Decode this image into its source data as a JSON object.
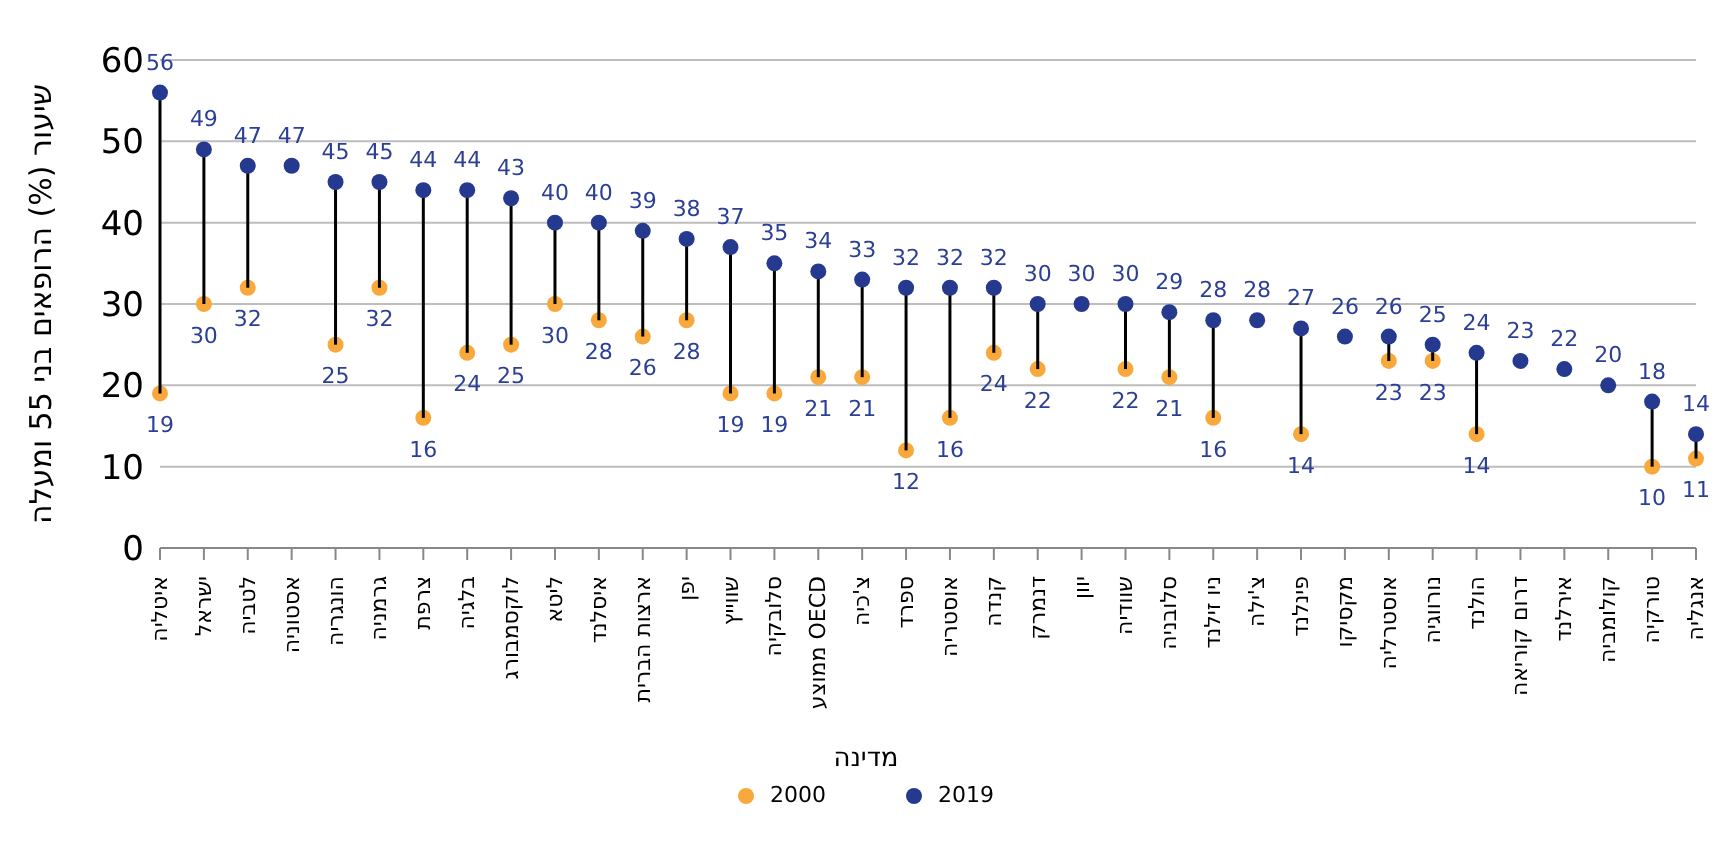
{
  "chart_data": {
    "type": "scatter",
    "xlabel": "מדינה",
    "ylabel": "שיעור (%) הרופאים בני 55 ומעלה",
    "categories": [
      "איטליה",
      "ישראל",
      "לטביה",
      "אסטוניה",
      "הונגריה",
      "גרמניה",
      "צרפת",
      "בלגיה",
      "לוקסמבורג",
      "ליטא",
      "איסלנד",
      "ארצות הברית",
      "יפן",
      "שווייץ",
      "סלובקיה",
      "ממוצע OECD",
      "צ'כיה",
      "ספרד",
      "אוסטריה",
      "קנדה",
      "דנמרק",
      "יוון",
      "שוודיה",
      "סלובניה",
      "ניו זילנד",
      "צ'ילה",
      "פינלנד",
      "מקסיקו",
      "אוסטרליה",
      "נורווגיה",
      "הולנד",
      "דרום קוריאה",
      "אירלנד",
      "קולומביה",
      "טורקיה",
      "אנגליה"
    ],
    "series": [
      {
        "name": "2000",
        "color": "#f9a93b",
        "values": [
          19,
          30,
          32,
          null,
          25,
          32,
          16,
          24,
          25,
          30,
          28,
          26,
          28,
          19,
          19,
          21,
          21,
          12,
          16,
          24,
          22,
          null,
          22,
          21,
          16,
          null,
          14,
          null,
          23,
          23,
          14,
          null,
          null,
          null,
          10,
          11
        ]
      },
      {
        "name": "2019",
        "color": "#253a8e",
        "values": [
          56,
          49,
          47,
          47,
          45,
          45,
          44,
          44,
          43,
          40,
          40,
          39,
          38,
          37,
          35,
          34,
          33,
          32,
          32,
          32,
          30,
          30,
          30,
          29,
          28,
          28,
          27,
          26,
          26,
          25,
          24,
          23,
          22,
          20,
          18,
          14
        ]
      }
    ],
    "ylim": [
      0,
      60
    ],
    "yticks": [
      0,
      10,
      20,
      30,
      40,
      50,
      60
    ],
    "grid": "y",
    "legend": "bottom",
    "marker": "circle",
    "data_labels": true
  }
}
